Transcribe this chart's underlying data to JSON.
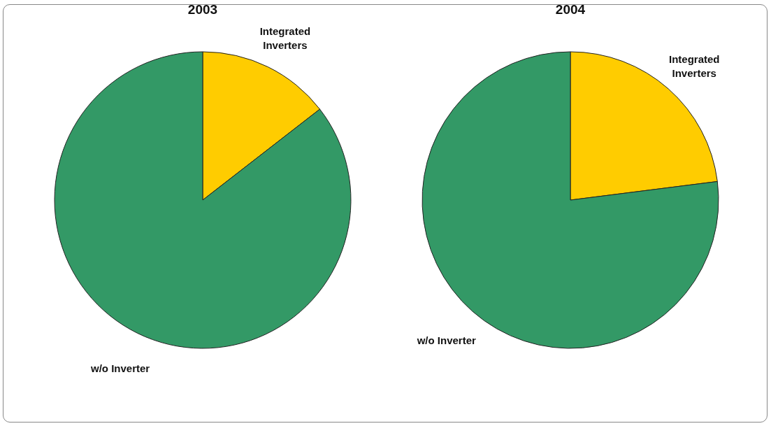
{
  "chart_data": [
    {
      "type": "pie",
      "title": "2003",
      "categories": [
        "Integrated Inverters",
        "w/o Inverter"
      ],
      "values": [
        14.5,
        85.5
      ],
      "colors": [
        "#ffcc00",
        "#339966"
      ]
    },
    {
      "type": "pie",
      "title": "2004",
      "categories": [
        "Integrated Inverters",
        "w/o Inverter"
      ],
      "values": [
        23,
        77
      ],
      "colors": [
        "#ffcc00",
        "#339966"
      ]
    }
  ]
}
